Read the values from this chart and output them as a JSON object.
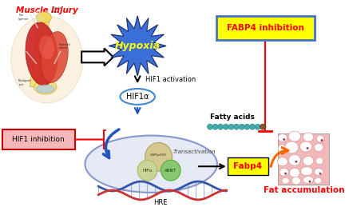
{
  "bg_color": "#ffffff",
  "muscle_injury_text": "Muscle injury",
  "muscle_injury_color": "#ff0000",
  "hypoxia_text": "Hypoxia",
  "hypoxia_color": "#ffff00",
  "hypoxia_bg": "#3a6fd8",
  "hif1_activation_text": "HIF1 activation",
  "hif1a_text": "HIF1α",
  "fabp4_inhibition_text": "FABP4 inhibition",
  "fabp4_inhibition_color": "#ff0000",
  "fabp4_inhibition_bg": "#ffff00",
  "fabp4_inhibition_border": "#4472c4",
  "hif1_inhibition_text": "HIF1 inhibition",
  "hif1_inhibition_bg": "#f4b8b8",
  "hif1_inhibition_border": "#cc0000",
  "fatty_acids_text": "Fatty acids",
  "fabp4_text": "Fabp4",
  "fabp4_text_color": "#ff0000",
  "fabp4_bg": "#ffff00",
  "transactivation_text": "Transactivation",
  "cbp_text": "CBP/p300",
  "hifa_text": "HIFα",
  "arnt_text": "ARNT",
  "hre_text": "HRE",
  "fat_accumulation_text": "Fat accumulation",
  "fat_accumulation_color": "#ff0000",
  "arrow_color": "#000000",
  "red_arrow_color": "#ff0000",
  "blue_arrow_color": "#2255bb",
  "dna_color1": "#3355aa",
  "dna_color2": "#cc3333",
  "nucleus_face": "#dde4f2",
  "nucleus_edge": "#6677bb",
  "cbp_color": "#d4c890",
  "hifa_color": "#c8d498",
  "arnt_color": "#88c870"
}
